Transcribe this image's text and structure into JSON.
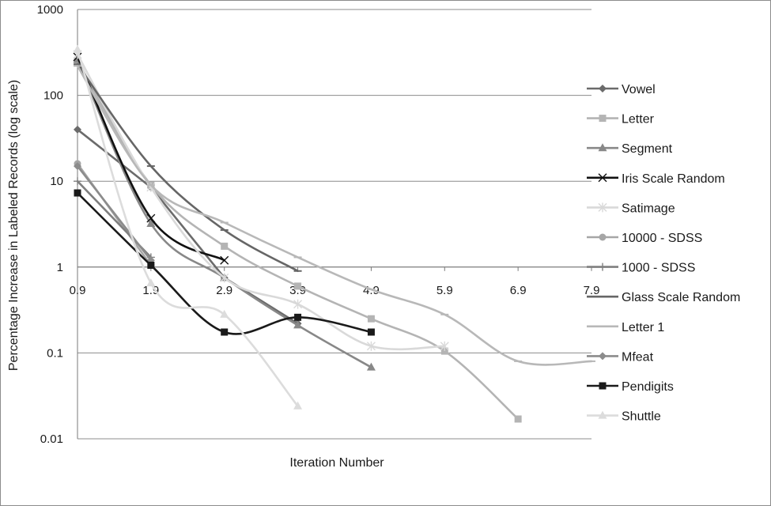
{
  "chart_data": {
    "type": "line",
    "title": "",
    "xlabel": "Iteration Number",
    "ylabel": "Percentage Increase in Labeled Records (log scale)",
    "yscale": "log",
    "xlim": [
      0.9,
      7.9
    ],
    "ylim": [
      0.01,
      1000
    ],
    "x_ticks": [
      "0.9",
      "1.9",
      "2.9",
      "3.9",
      "4.9",
      "5.9",
      "6.9",
      "7.9"
    ],
    "y_ticks": [
      "0.01",
      "0.1",
      "1",
      "10",
      "100",
      "1000"
    ],
    "grid": "horizontal",
    "legend_position": "right",
    "series": [
      {
        "name": "Vowel",
        "color": "#6b6b6b",
        "marker": "diamond",
        "smooth": false,
        "points": [
          [
            0.9,
            40
          ],
          [
            1.9,
            8.5
          ],
          [
            2.9,
            0.75
          ],
          [
            3.9,
            0.22
          ]
        ]
      },
      {
        "name": "Letter",
        "color": "#b4b4b4",
        "marker": "square",
        "smooth": true,
        "points": [
          [
            0.9,
            250
          ],
          [
            1.9,
            9
          ],
          [
            2.9,
            1.75
          ],
          [
            3.9,
            0.6
          ],
          [
            4.9,
            0.25
          ],
          [
            5.9,
            0.105
          ],
          [
            6.9,
            0.017
          ]
        ]
      },
      {
        "name": "Segment",
        "color": "#888888",
        "marker": "triangle",
        "smooth": true,
        "points": [
          [
            0.9,
            260
          ],
          [
            1.9,
            3.2
          ],
          [
            2.9,
            0.75
          ],
          [
            3.9,
            0.21
          ],
          [
            4.9,
            0.068
          ]
        ]
      },
      {
        "name": "Iris Scale Random",
        "color": "#111111",
        "marker": "x",
        "smooth": true,
        "points": [
          [
            0.9,
            280
          ],
          [
            1.9,
            3.7
          ],
          [
            2.9,
            1.2
          ]
        ]
      },
      {
        "name": "Satimage",
        "color": "#d9d9d9",
        "marker": "star",
        "smooth": true,
        "points": [
          [
            0.9,
            300
          ],
          [
            1.9,
            8.5
          ],
          [
            2.9,
            0.75
          ],
          [
            3.9,
            0.37
          ],
          [
            4.9,
            0.12
          ],
          [
            5.9,
            0.12
          ]
        ]
      },
      {
        "name": "10000 - SDSS",
        "color": "#a6a6a6",
        "marker": "circle",
        "smooth": true,
        "points": [
          [
            0.9,
            16
          ],
          [
            1.9,
            1.05
          ]
        ]
      },
      {
        "name": "1000 - SDSS",
        "color": "#7f7f7f",
        "marker": "plus",
        "smooth": true,
        "points": [
          [
            0.9,
            10
          ],
          [
            1.9,
            1.3
          ]
        ]
      },
      {
        "name": "Glass Scale Random",
        "color": "#666666",
        "marker": "dash",
        "smooth": true,
        "points": [
          [
            0.9,
            230
          ],
          [
            1.9,
            15
          ],
          [
            2.9,
            2.7
          ],
          [
            3.9,
            0.9
          ]
        ]
      },
      {
        "name": "Letter 1",
        "color": "#b8b8b8",
        "marker": "dash",
        "smooth": true,
        "points": [
          [
            0.9,
            220
          ],
          [
            1.9,
            9
          ],
          [
            2.9,
            3.3
          ],
          [
            3.9,
            1.3
          ],
          [
            4.9,
            0.55
          ],
          [
            5.9,
            0.28
          ],
          [
            6.9,
            0.08
          ],
          [
            7.9,
            0.08
          ]
        ]
      },
      {
        "name": "Mfeat",
        "color": "#8c8c8c",
        "marker": "diamond",
        "smooth": false,
        "points": [
          [
            0.9,
            15
          ],
          [
            1.9,
            1.2
          ]
        ]
      },
      {
        "name": "Pendigits",
        "color": "#1a1a1a",
        "marker": "square",
        "smooth": true,
        "points": [
          [
            0.9,
            7.3
          ],
          [
            1.9,
            1.05
          ],
          [
            2.9,
            0.175
          ],
          [
            3.9,
            0.26
          ],
          [
            4.9,
            0.175
          ]
        ]
      },
      {
        "name": "Shuttle",
        "color": "#dcdcdc",
        "marker": "triangle",
        "smooth": true,
        "points": [
          [
            0.9,
            340
          ],
          [
            1.9,
            0.65
          ],
          [
            2.9,
            0.28
          ],
          [
            3.9,
            0.024
          ]
        ]
      }
    ]
  }
}
